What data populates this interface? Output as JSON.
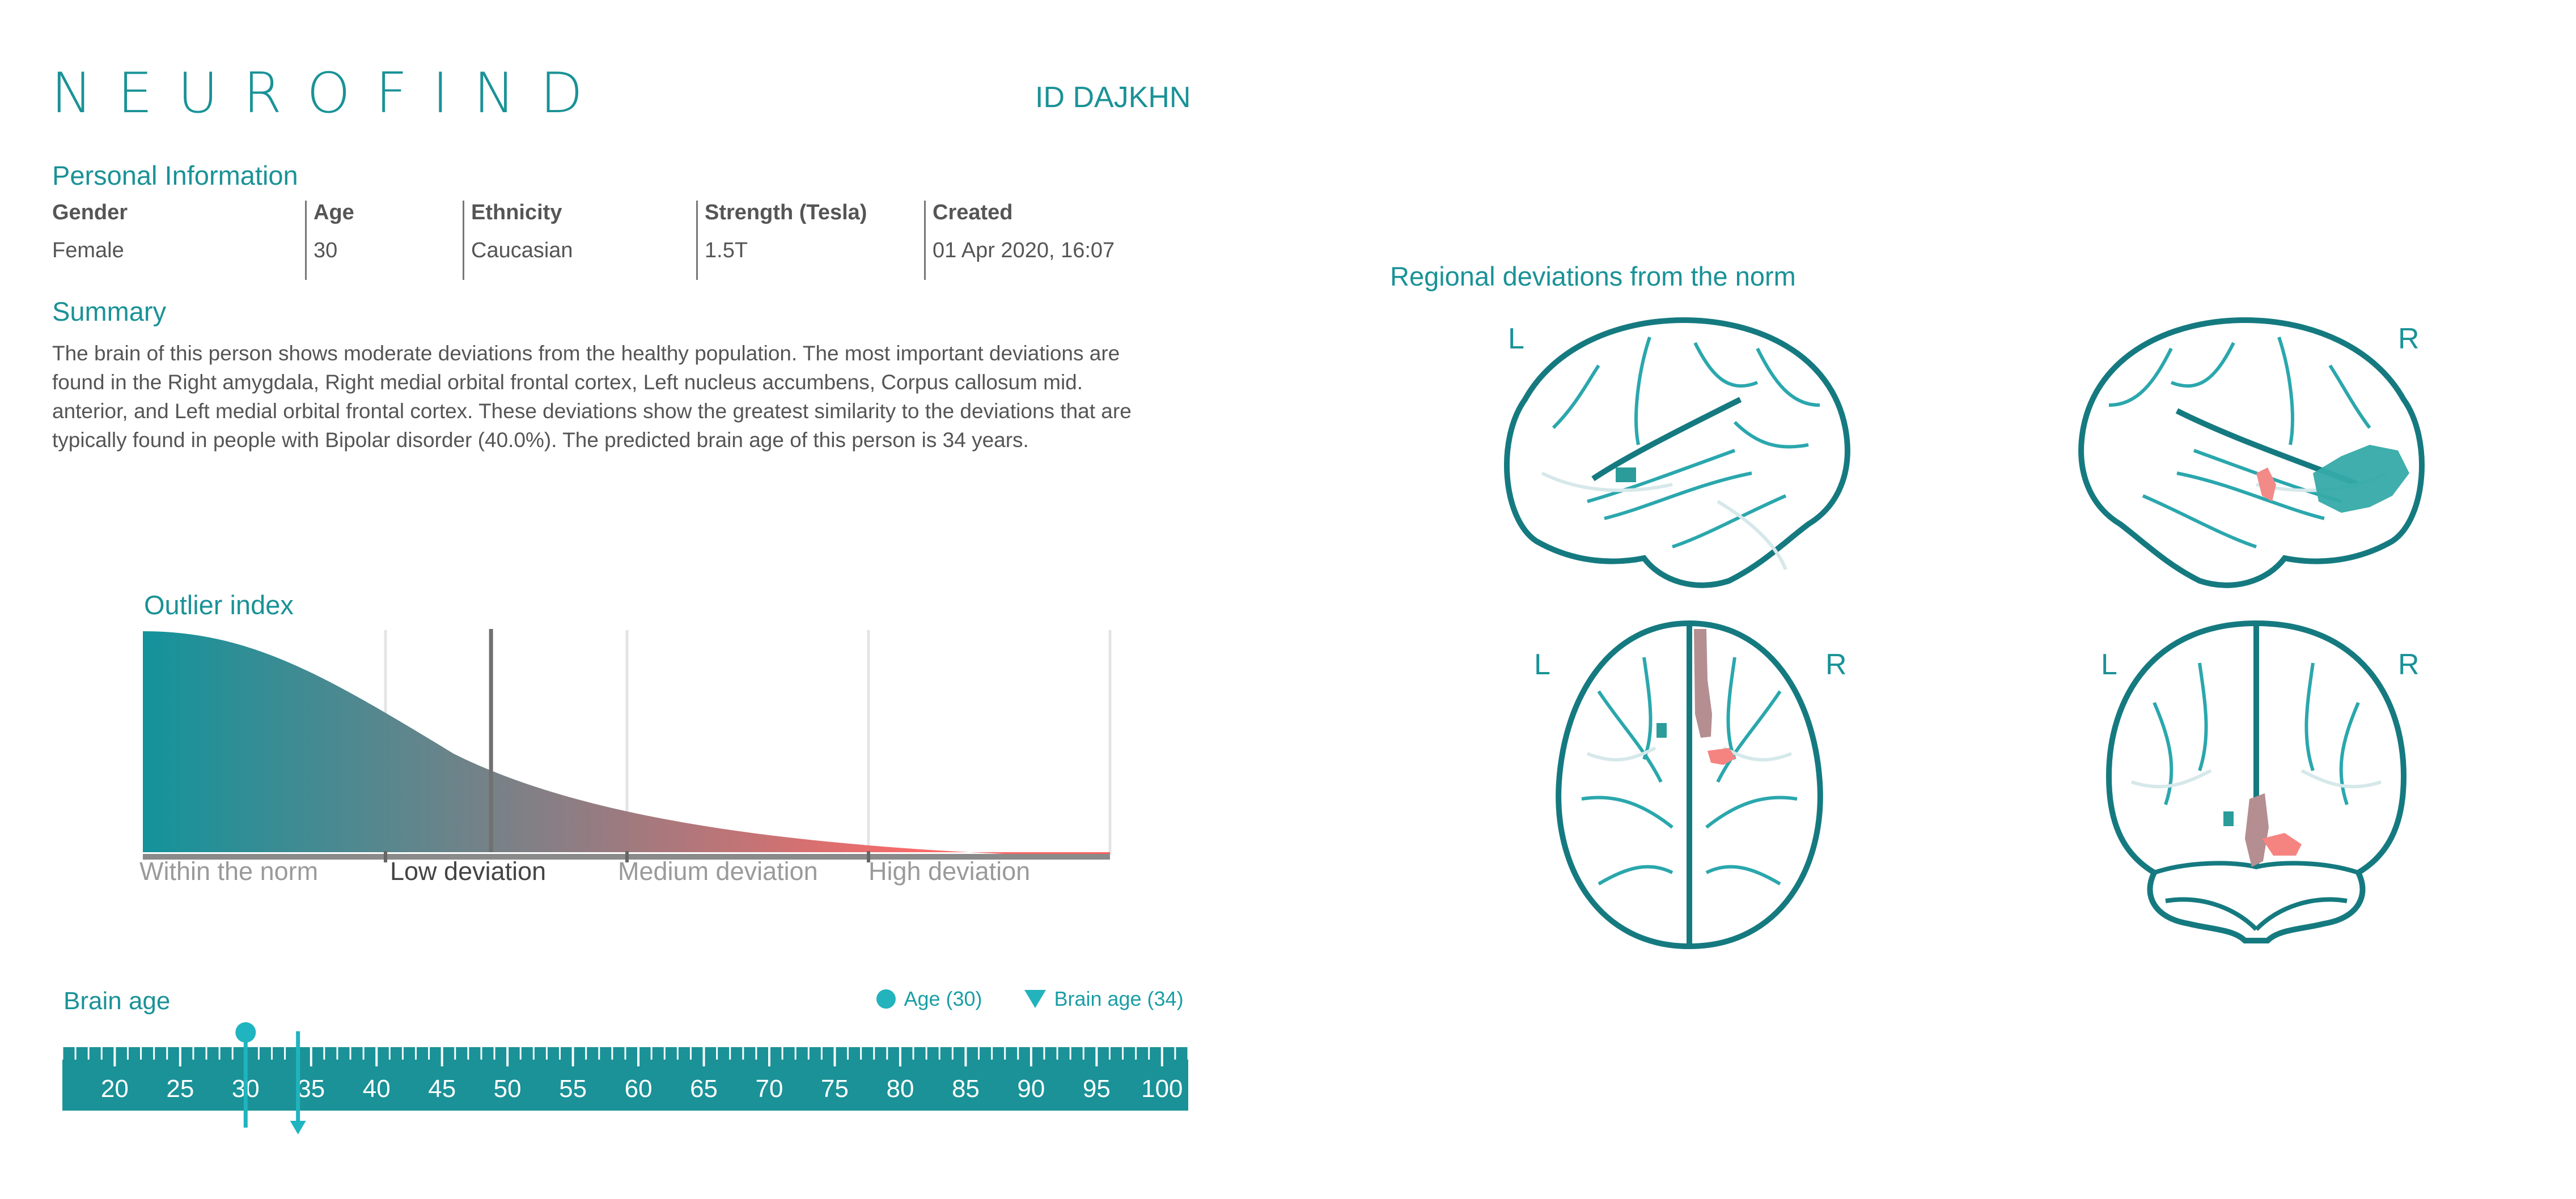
{
  "brand": {
    "logo": "NEUROFIND",
    "id_text": "ID DAJKHN"
  },
  "personal_info": {
    "title": "Personal Information",
    "columns": [
      {
        "header": "Gender",
        "value": "Female"
      },
      {
        "header": "Age",
        "value": "30"
      },
      {
        "header": "Ethnicity",
        "value": "Caucasian"
      },
      {
        "header": "Strength (Tesla)",
        "value": "1.5T"
      },
      {
        "header": "Created",
        "value": "01 Apr 2020, 16:07"
      }
    ]
  },
  "summary": {
    "title": "Summary",
    "text": "The brain of this person shows moderate deviations from the healthy population. The most important deviations are found in the Right amygdala, Right medial orbital frontal cortex, Left nucleus accumbens, Corpus callosum mid. anterior, and Left medial orbital frontal cortex. These deviations show the greatest similarity to the deviations that are typically found in people with Bipolar disorder (40.0%). The predicted brain age of this person is 34 years."
  },
  "outlier_index": {
    "title": "Outlier index",
    "categories": [
      "Within the norm",
      "Low deviation",
      "Medium deviation",
      "High deviation"
    ],
    "active_category": "Low deviation",
    "marker_fraction": 0.36
  },
  "brain_age": {
    "title": "Brain age",
    "legend": {
      "age": "Age (30)",
      "brain_age": "Brain age (34)"
    },
    "age": 30,
    "predicted_age": 34,
    "scale_min": 16,
    "scale_max": 102,
    "ticks": [
      "20",
      "25",
      "30",
      "35",
      "40",
      "45",
      "50",
      "55",
      "60",
      "65",
      "70",
      "75",
      "80",
      "85",
      "90",
      "95",
      "100"
    ]
  },
  "brain_map": {
    "title": "Regional deviations from the norm",
    "labels": {
      "left": "L",
      "right": "R"
    }
  },
  "colors": {
    "teal": "#1a9297",
    "coral": "#f86a68",
    "muted_pink": "#b48e90",
    "grey": "#8a8a8a"
  }
}
